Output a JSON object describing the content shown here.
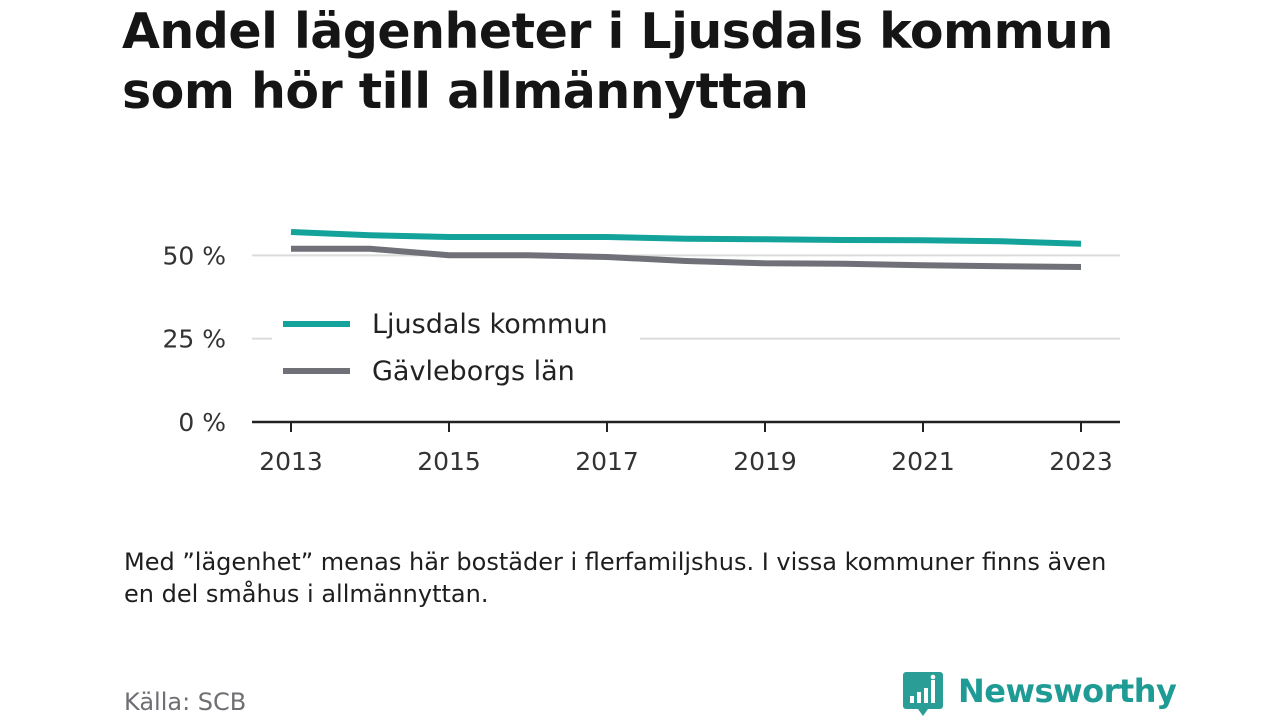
{
  "chart_data": {
    "type": "line",
    "title": "Andel lägenheter i Ljusdals kommun som hör till allmännyttan",
    "x": [
      2013,
      2014,
      2015,
      2016,
      2017,
      2018,
      2019,
      2020,
      2021,
      2022,
      2023
    ],
    "series": [
      {
        "name": "Ljusdals kommun",
        "color": "#13a39a",
        "values": [
          57,
          56,
          55.5,
          55.5,
          55.5,
          55,
          54.8,
          54.6,
          54.5,
          54.2,
          53.5
        ]
      },
      {
        "name": "Gävleborgs län",
        "color": "#707078",
        "values": [
          52,
          52,
          50,
          50,
          49.5,
          48.3,
          47.6,
          47.5,
          47,
          46.7,
          46.5
        ]
      }
    ],
    "xticks": [
      "2013",
      "2015",
      "2017",
      "2019",
      "2021",
      "2023"
    ],
    "yticks": [
      {
        "value": 0,
        "label": "0 %"
      },
      {
        "value": 25,
        "label": "25 %"
      },
      {
        "value": 50,
        "label": "50 %"
      }
    ],
    "ylim": [
      0,
      57
    ],
    "xlim": [
      2013,
      2023
    ],
    "grid": true,
    "legend_position": "inside-left",
    "xlabel": "",
    "ylabel": ""
  },
  "footnote": "Med ”lägenhet” menas här bostäder i flerfamiljshus. I vissa kommuner finns även en del småhus i allmännyttan.",
  "source": "Källa: SCB",
  "brand": {
    "name": "Newsworthy",
    "icon": "newsworthy-logo-icon",
    "color": "#1f9b95"
  }
}
